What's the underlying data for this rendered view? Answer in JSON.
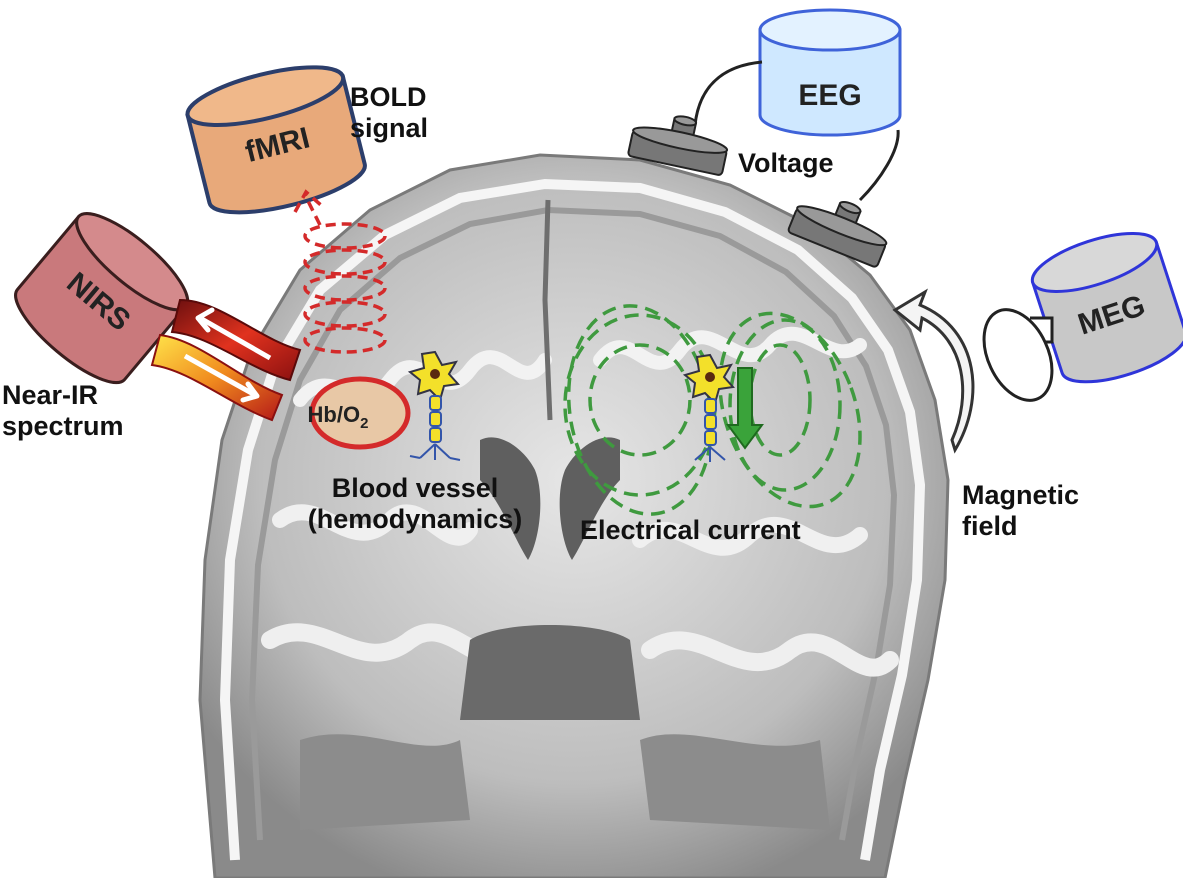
{
  "devices": {
    "fmri": "fMRI",
    "nirs": "NIRS",
    "eeg": "EEG",
    "meg": "MEG"
  },
  "labels": {
    "bold_line1": "BOLD",
    "bold_line2": "signal",
    "voltage": "Voltage",
    "near_ir_line1": "Near-IR",
    "near_ir_line2": "spectrum",
    "blood_vessel_line1": "Blood vessel",
    "blood_vessel_line2": "(hemodynamics)",
    "electrical_current": "Electrical current",
    "magnetic_line1": "Magnetic",
    "magnetic_line2": "field",
    "hb_main": "Hb/O",
    "hb_sub": "2"
  },
  "colors": {
    "fmri": "#e8a97a",
    "nirs": "#c9797c",
    "eeg": "#cfe8ff",
    "meg": "#c8c8c8",
    "bold_signal": "#d42a2a",
    "field_lines": "#3f9a3f",
    "current_arrow": "#3aa33a",
    "vessel": "#e8c8a6"
  }
}
